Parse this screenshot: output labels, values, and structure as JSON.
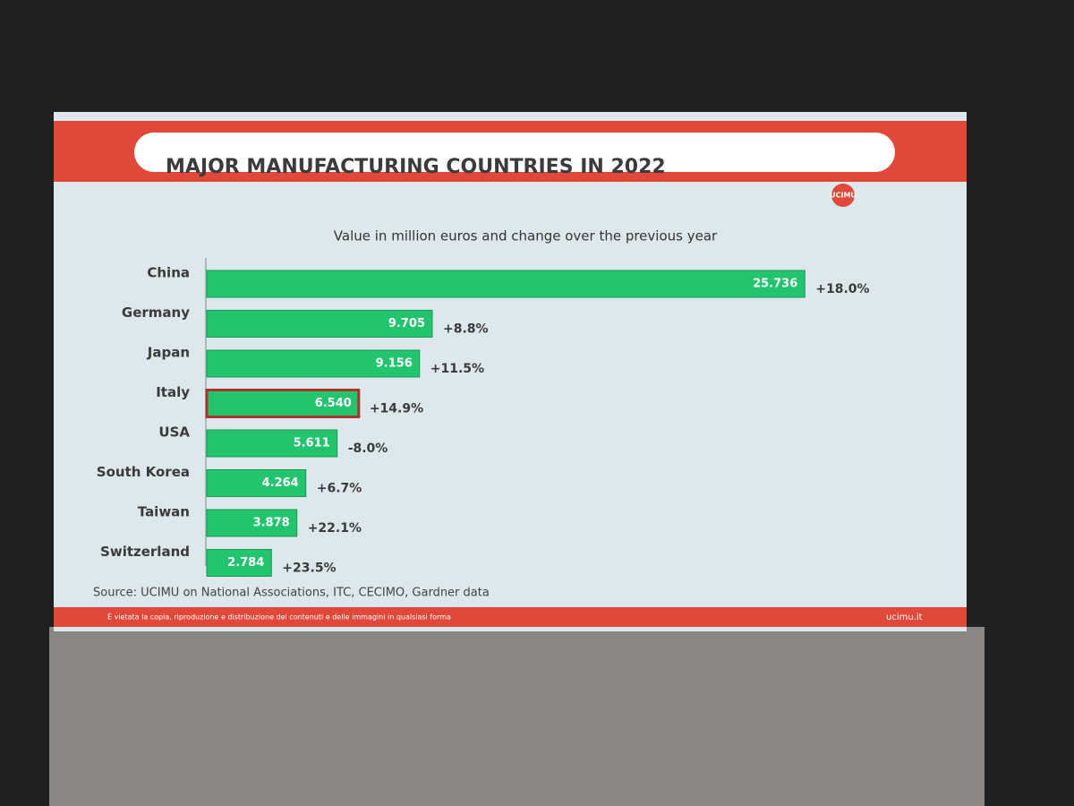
{
  "chart_data": {
    "type": "bar",
    "orientation": "horizontal",
    "title": "MAJOR MANUFACTURING COUNTRIES IN 2022",
    "subtitle": "Value in million euros and change over the previous year",
    "categories": [
      "China",
      "Germany",
      "Japan",
      "Italy",
      "USA",
      "South Korea",
      "Taiwan",
      "Switzerland"
    ],
    "values": [
      25736,
      9705,
      9156,
      6540,
      5611,
      4264,
      3878,
      2784
    ],
    "value_labels": [
      "25.736",
      "9.705",
      "9.156",
      "6.540",
      "5.611",
      "4.264",
      "3.878",
      "2.784"
    ],
    "change_labels": [
      "+18.0%",
      "+8.8%",
      "+11.5%",
      "+14.9%",
      "-8.0%",
      "+6.7%",
      "+22.1%",
      "+23.5%"
    ],
    "color": "#22c46e",
    "highlight": 3,
    "highlight_color": "#a8342c",
    "xlim": [
      0,
      30000
    ],
    "source": "Source: UCIMU on National Associations, ITC, CECIMO, Gardner data",
    "logo": "UCIMU",
    "footer": "È vietata la copia, riproduzione e distribuzione dei contenuti e delle immagini in qualsiasi forma",
    "website": "ucimu.it"
  }
}
